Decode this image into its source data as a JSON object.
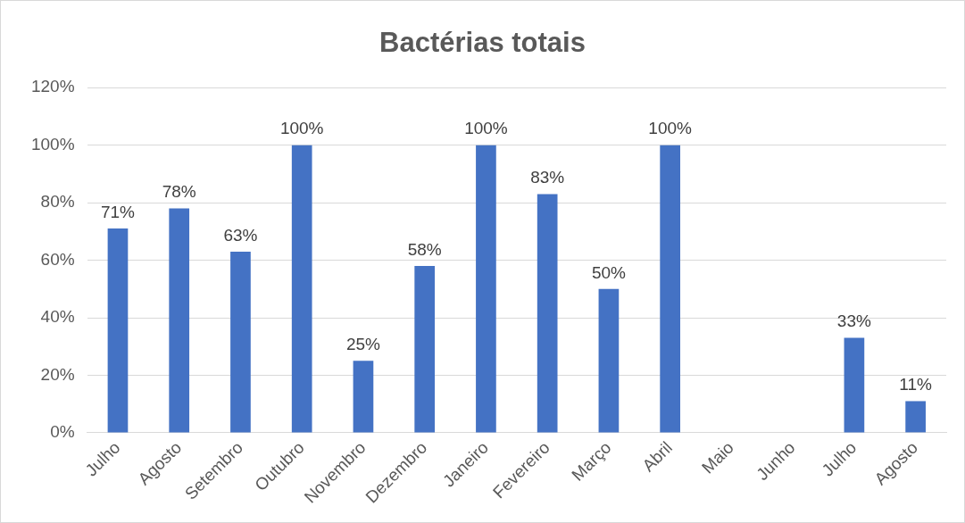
{
  "chart_data": {
    "type": "bar",
    "title": "Bactérias totais",
    "categories": [
      "Julho",
      "Agosto",
      "Setembro",
      "Outubro",
      "Novembro",
      "Dezembro",
      "Janeiro",
      "Fevereiro",
      "Março",
      "Abril",
      "Maio",
      "Junho",
      "Julho",
      "Agosto"
    ],
    "values": [
      71,
      78,
      63,
      100,
      25,
      58,
      100,
      83,
      50,
      100,
      null,
      null,
      33,
      11
    ],
    "value_labels": [
      "71%",
      "78%",
      "63%",
      "100%",
      "25%",
      "58%",
      "100%",
      "83%",
      "50%",
      "100%",
      null,
      null,
      "33%",
      "11%"
    ],
    "color": "#4472c4",
    "ylim": [
      0,
      120
    ],
    "yticks": [
      {
        "value": 0,
        "label": "0%"
      },
      {
        "value": 20,
        "label": "20%"
      },
      {
        "value": 40,
        "label": "40%"
      },
      {
        "value": 60,
        "label": "60%"
      },
      {
        "value": 80,
        "label": "80%"
      },
      {
        "value": 100,
        "label": "100%"
      },
      {
        "value": 120,
        "label": "120%"
      }
    ],
    "grid": "y",
    "legend": false
  }
}
